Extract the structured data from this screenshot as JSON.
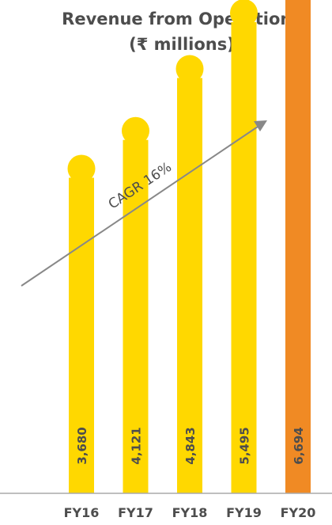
{
  "chart_data": {
    "type": "bar",
    "title": "Revenue from Operations",
    "subtitle": "(₹ millions)",
    "categories": [
      "FY16",
      "FY17",
      "FY18",
      "FY19",
      "FY20"
    ],
    "values": [
      3680,
      4121,
      4843,
      5495,
      6694
    ],
    "value_labels": [
      "3,680",
      "4,121",
      "4,843",
      "5,495",
      "6,694"
    ],
    "annotation": "CAGR 16%",
    "highlight_category": "FY20",
    "ylim": [
      0,
      7500
    ],
    "grid": false,
    "colors": {
      "bar": "#FFD800",
      "highlight": "#F08A24",
      "arrow": "#888888",
      "axis": "#aaaaaa",
      "text": "#4d4d4d"
    }
  }
}
